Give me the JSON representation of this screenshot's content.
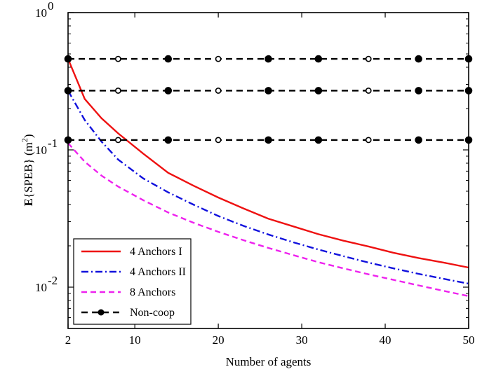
{
  "chart_data": {
    "type": "line",
    "xlabel": "Number of agents",
    "ylabel_main": "E",
    "ylabel_rest": "{SPEB} (m",
    "ylabel_sup": "2",
    "ylabel_close": ")",
    "yscale": "log",
    "xlim": [
      2,
      50
    ],
    "ylim": [
      0.005,
      1
    ],
    "x_ticks": [
      {
        "value": 2,
        "label": "2"
      },
      {
        "value": 10,
        "label": "10"
      },
      {
        "value": 20,
        "label": "20"
      },
      {
        "value": 30,
        "label": "30"
      },
      {
        "value": 40,
        "label": "40"
      },
      {
        "value": 50,
        "label": "50"
      }
    ],
    "y_ticks": [
      {
        "value": 1,
        "base": "10",
        "exp": "0"
      },
      {
        "value": 0.1,
        "base": "10",
        "exp": "-1"
      },
      {
        "value": 0.01,
        "base": "10",
        "exp": "-2"
      }
    ],
    "grid": false,
    "legend_position": "bottom-left",
    "series": [
      {
        "name": "4 Anchors I",
        "color": "#ee1111",
        "dash": "solid",
        "x": [
          2,
          4,
          6,
          8,
          11,
          14,
          17,
          20,
          23,
          26,
          29,
          32,
          35,
          38,
          41,
          44,
          47,
          50
        ],
        "y": [
          0.46,
          0.235,
          0.17,
          0.132,
          0.094,
          0.068,
          0.055,
          0.045,
          0.0375,
          0.0315,
          0.0277,
          0.0243,
          0.0218,
          0.0198,
          0.0178,
          0.0163,
          0.0151,
          0.0139
        ]
      },
      {
        "name": "4 Anchors II",
        "color": "#1111dd",
        "dash": "dashdot",
        "x": [
          2,
          4,
          6,
          8,
          11,
          14,
          17,
          20,
          23,
          26,
          29,
          32,
          35,
          38,
          41,
          44,
          47,
          50
        ],
        "y": [
          0.27,
          0.165,
          0.115,
          0.085,
          0.062,
          0.049,
          0.04,
          0.033,
          0.028,
          0.0242,
          0.0212,
          0.0188,
          0.0168,
          0.0151,
          0.0137,
          0.0125,
          0.0115,
          0.0106
        ]
      },
      {
        "name": "8 Anchors",
        "color": "#ee22ee",
        "dash": "dashed",
        "x": [
          2,
          4,
          6,
          8,
          11,
          14,
          17,
          20,
          23,
          26,
          29,
          32,
          35,
          38,
          41,
          44,
          47,
          50
        ],
        "y": [
          0.112,
          0.082,
          0.065,
          0.054,
          0.043,
          0.035,
          0.0295,
          0.0253,
          0.022,
          0.0193,
          0.0171,
          0.0152,
          0.0137,
          0.0124,
          0.0113,
          0.0103,
          0.0094,
          0.0086
        ]
      }
    ],
    "noncoop": {
      "name": "Non-coop",
      "color": "#000000",
      "levels": [
        0.46,
        0.27,
        0.118
      ],
      "marker_x": [
        2,
        8,
        14,
        20,
        26,
        32,
        38,
        44,
        50
      ],
      "marker_fill": [
        [
          "filled",
          "open",
          "filled",
          "open",
          "filled",
          "filled",
          "open",
          "filled",
          "filled"
        ],
        [
          "filled",
          "open",
          "filled",
          "open",
          "filled",
          "filled",
          "open",
          "filled",
          "filled"
        ],
        [
          "filled",
          "open",
          "filled",
          "open",
          "filled",
          "filled",
          "open",
          "filled",
          "filled"
        ]
      ]
    }
  }
}
